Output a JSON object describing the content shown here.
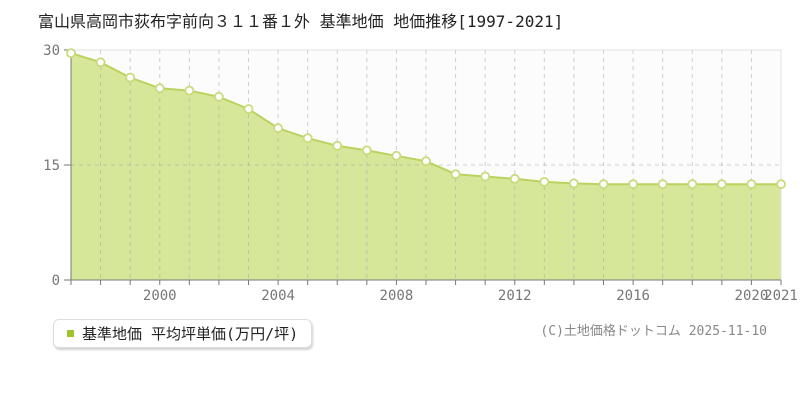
{
  "chart_data": {
    "type": "area",
    "title": "富山県高岡市荻布字前向３１１番１外 基準地価 地価推移[1997-2021]",
    "x": [
      1997,
      1998,
      1999,
      2000,
      2001,
      2002,
      2003,
      2004,
      2005,
      2006,
      2007,
      2008,
      2009,
      2010,
      2011,
      2012,
      2013,
      2014,
      2015,
      2016,
      2017,
      2018,
      2019,
      2020,
      2021
    ],
    "series": [
      {
        "name": "基準地価 平均坪単価(万円/坪)",
        "values": [
          29.6,
          28.4,
          26.4,
          25.0,
          24.7,
          23.9,
          22.3,
          19.8,
          18.5,
          17.5,
          16.9,
          16.2,
          15.5,
          13.8,
          13.5,
          13.2,
          12.8,
          12.6,
          12.5,
          12.5,
          12.5,
          12.5,
          12.5,
          12.5,
          12.5
        ]
      }
    ],
    "ylim": [
      0,
      30
    ],
    "yticks": [
      0,
      15,
      30
    ],
    "xticks": [
      2000,
      2004,
      2008,
      2012,
      2016,
      2020,
      2021
    ],
    "grid": {
      "vertical": "dashed line at every year",
      "horizontal_at": [
        15
      ]
    },
    "legend_position": "bottom-left",
    "xlabel": "",
    "ylabel": "平均坪単価(万円/坪)"
  },
  "legend": {
    "label": "基準地価 平均坪単価(万円/坪)"
  },
  "copyright": "(C)土地価格ドットコム 2025-11-10",
  "colors": {
    "fill": "#d6e79a",
    "line": "#b9d35e",
    "marker_fill": "#ffffff",
    "marker_stroke": "#c9db7d",
    "grid": "#aaaaaa",
    "plot_border": "#e2e2e2",
    "plot_bg": "#fcfcfc",
    "axis": "#777777",
    "tick_text": "#777777",
    "legend_marker": "#9fc32b"
  }
}
